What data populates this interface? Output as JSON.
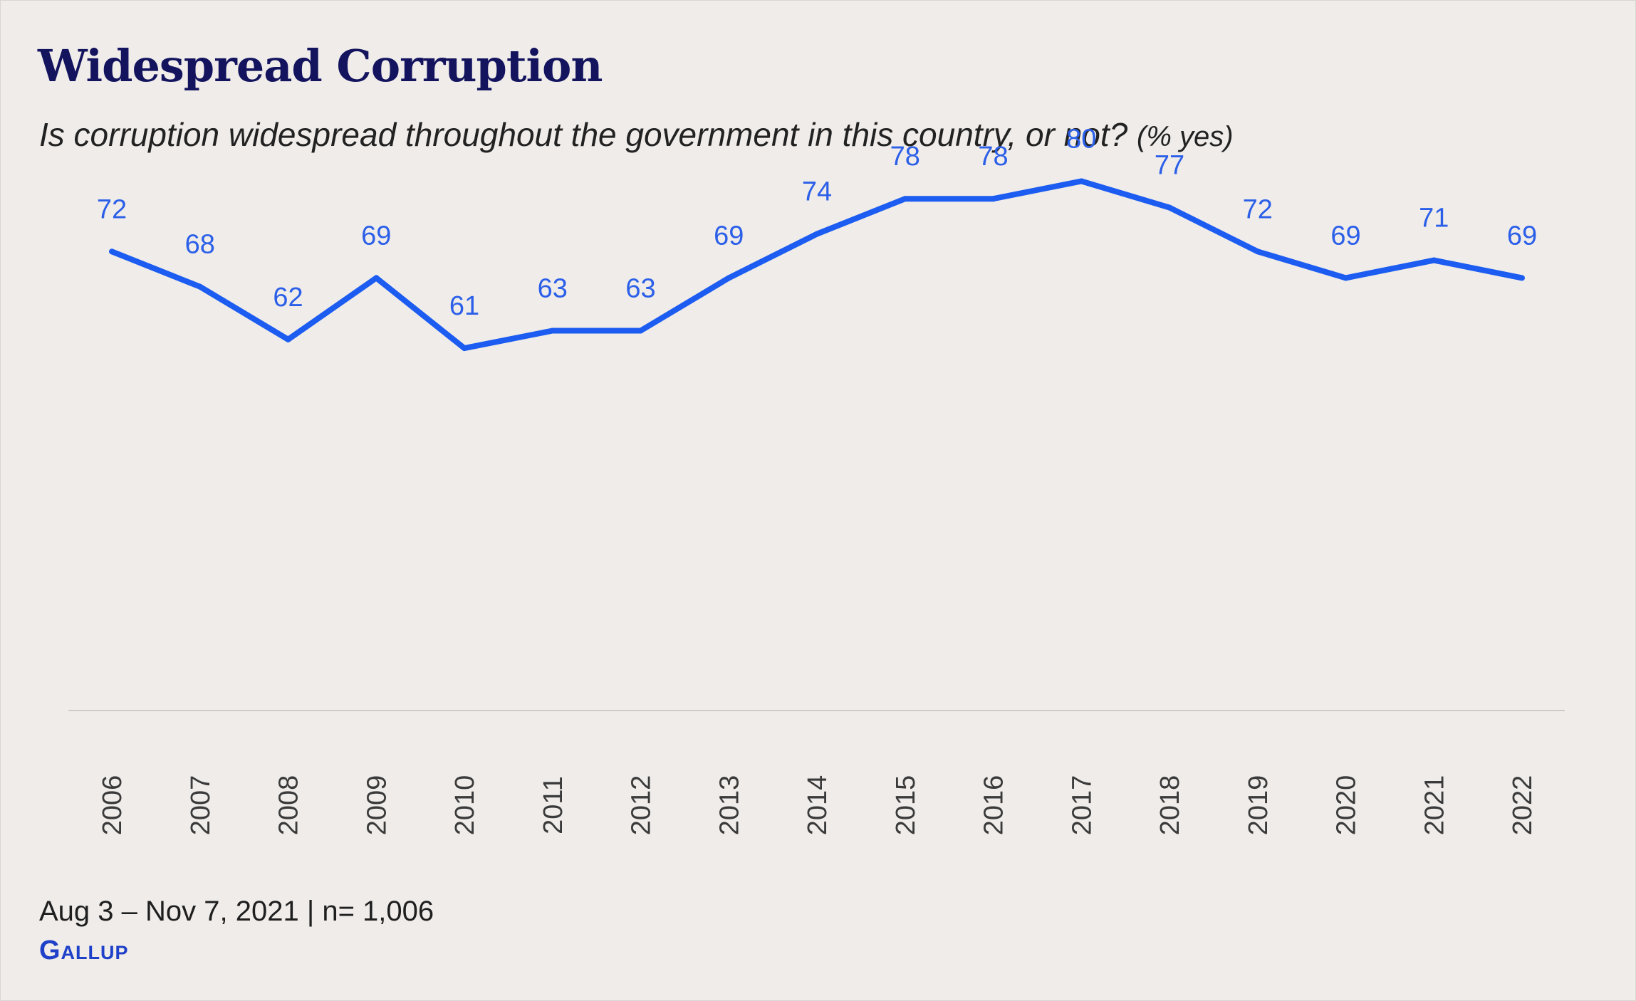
{
  "header": {
    "title": "Widespread Corruption",
    "subtitle": "Is corruption widespread throughout the government in this country, or not?",
    "subtitle_unit": "(% yes)"
  },
  "footer": {
    "note": "Aug 3 – Nov 7, 2021 | n= 1,006",
    "brand": "Gallup"
  },
  "colors": {
    "line": "#1c5cf0",
    "labels": "#2b5fe8",
    "title": "#13135e",
    "background": "#efecea"
  },
  "chart_data": {
    "type": "line",
    "x": [
      "2006",
      "2007",
      "2008",
      "2009",
      "2010",
      "2011",
      "2012",
      "2013",
      "2014",
      "2015",
      "2016",
      "2017",
      "2018",
      "2019",
      "2020",
      "2021",
      "2022"
    ],
    "series": [
      {
        "values": [
          72,
          68,
          62,
          69,
          61,
          63,
          63,
          69,
          74,
          78,
          78,
          80,
          77,
          72,
          69,
          71,
          69
        ]
      }
    ],
    "title": "Widespread Corruption",
    "subtitle": "Is corruption widespread throughout the government in this country, or not? (% yes)",
    "xlabel": "",
    "ylabel": "",
    "ylim": [
      0,
      100
    ],
    "data_labels": true,
    "grid": false,
    "legend": "none"
  }
}
